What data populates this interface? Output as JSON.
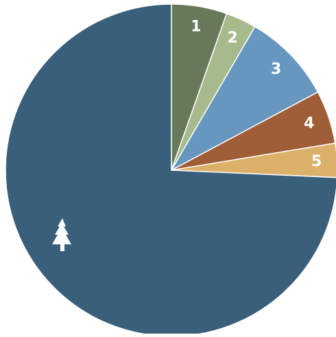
{
  "chart_data": {
    "type": "pie",
    "start": "12 o'clock",
    "direction": "clockwise",
    "slices": [
      {
        "label": "1",
        "value": 5.4,
        "color": "#68785a"
      },
      {
        "label": "2",
        "value": 3.0,
        "color": "#a6ba8c"
      },
      {
        "label": "3",
        "value": 8.8,
        "color": "#6796be"
      },
      {
        "label": "4",
        "value": 5.2,
        "color": "#a05e38"
      },
      {
        "label": "5",
        "value": 3.3,
        "color": "#dbb068"
      },
      {
        "label": "",
        "value": 74.3,
        "color": "#3a5f7a",
        "icon": "tree-icon",
        "icon_color": "#ffffff"
      }
    ],
    "slice_border_color": "#ffffff"
  }
}
